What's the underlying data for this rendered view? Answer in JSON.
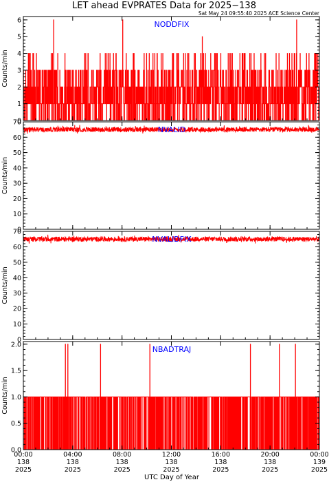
{
  "header": {
    "title": "LET ahead EVPRATES Data for 2025−138",
    "timestamp": "Sat May 24 09:55:40 2025 ACE Science Center"
  },
  "colors": {
    "series": "#ff0000",
    "panel_label": "#0000ff",
    "axes": "#000000",
    "background": "#ffffff"
  },
  "chart_data": [
    {
      "type": "line",
      "label": "NODDFIX",
      "ylabel": "Counts/min",
      "xlim": [
        0,
        24
      ],
      "ylim": [
        0,
        6.2
      ],
      "yticks": [
        "0",
        "1",
        "2",
        "3",
        "4",
        "5",
        "6"
      ],
      "ytick_values": [
        0,
        1,
        2,
        3,
        4,
        5,
        6
      ],
      "series": [
        {
          "level_values": [
            0,
            1,
            2,
            3,
            4
          ],
          "spikes": [
            [
              2.45,
              6
            ],
            [
              8.05,
              6
            ],
            [
              22.15,
              6
            ],
            [
              14.5,
              5
            ]
          ]
        }
      ]
    },
    {
      "type": "line",
      "label": "NVALID",
      "ylabel": "Counts/min",
      "xlim": [
        0,
        24
      ],
      "ylim": [
        0,
        70
      ],
      "yticks": [
        "0",
        "10",
        "20",
        "30",
        "40",
        "50",
        "60",
        "70"
      ],
      "ytick_values": [
        0,
        10,
        20,
        30,
        40,
        50,
        60,
        70
      ],
      "series": [
        {
          "typical_value": 65,
          "range": [
            62,
            68
          ]
        }
      ]
    },
    {
      "type": "line",
      "label": "NVALIDFIX",
      "ylabel": "Counts/min",
      "xlim": [
        0,
        24
      ],
      "ylim": [
        0,
        70
      ],
      "yticks": [
        "0",
        "10",
        "20",
        "30",
        "40",
        "50",
        "60",
        "70"
      ],
      "ytick_values": [
        0,
        10,
        20,
        30,
        40,
        50,
        60,
        70
      ],
      "series": [
        {
          "typical_value": 65,
          "range": [
            62,
            68
          ]
        }
      ]
    },
    {
      "type": "line",
      "label": "NBADTRAJ",
      "ylabel": "Counts/min",
      "xlim": [
        0,
        24
      ],
      "ylim": [
        0,
        2.05
      ],
      "yticks": [
        "0.0",
        "0.5",
        "1.0",
        "1.5",
        "2.0"
      ],
      "ytick_values": [
        0,
        0.5,
        1,
        1.5,
        2
      ],
      "series": [
        {
          "level_values": [
            0,
            1
          ],
          "spikes": [
            [
              3.4,
              2
            ],
            [
              3.6,
              2
            ],
            [
              6.25,
              2
            ],
            [
              10.25,
              2
            ],
            [
              18.4,
              2
            ],
            [
              20.75,
              2
            ],
            [
              22.05,
              2
            ]
          ]
        }
      ]
    }
  ],
  "xaxis": {
    "title": "UTC Day of Year",
    "ticks": [
      {
        "value": 0,
        "time": "00:00",
        "doy": "138",
        "year": "2025"
      },
      {
        "value": 4,
        "time": "04:00",
        "doy": "138",
        "year": "2025"
      },
      {
        "value": 8,
        "time": "08:00",
        "doy": "138",
        "year": "2025"
      },
      {
        "value": 12,
        "time": "12:00",
        "doy": "138",
        "year": "2025"
      },
      {
        "value": 16,
        "time": "16:00",
        "doy": "138",
        "year": "2025"
      },
      {
        "value": 20,
        "time": "20:00",
        "doy": "138",
        "year": "2025"
      },
      {
        "value": 24,
        "time": "00:00",
        "doy": "139",
        "year": "2025"
      }
    ]
  }
}
